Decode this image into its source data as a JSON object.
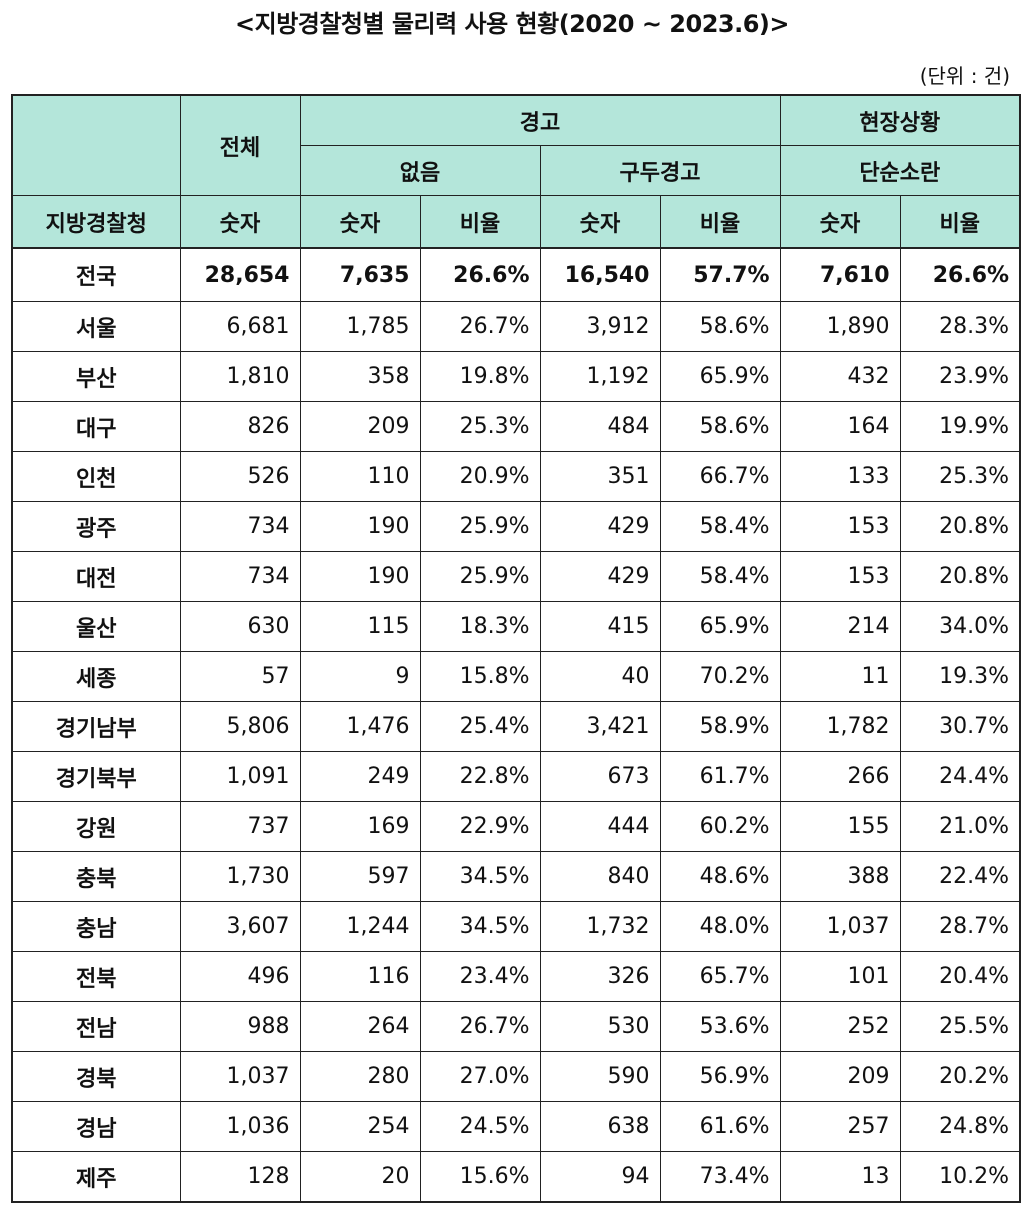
{
  "title": "<지방경찰청별 물리력 사용 현황(2020 ~ 2023.6)>",
  "unit": "(단위 : 건)",
  "header": {
    "total": "전체",
    "warning": "경고",
    "field_situation": "현장상황",
    "none": "없음",
    "verbal_warning": "구두경고",
    "simple_disturbance": "단순소란",
    "region_col": "지방경찰청",
    "count": "숫자",
    "ratio": "비율"
  },
  "rows": [
    {
      "region": "전국",
      "total": "28,654",
      "none_n": "7,635",
      "none_r": "26.6%",
      "verbal_n": "16,540",
      "verbal_r": "57.7%",
      "simple_n": "7,610",
      "simple_r": "26.6%"
    },
    {
      "region": "서울",
      "total": "6,681",
      "none_n": "1,785",
      "none_r": "26.7%",
      "verbal_n": "3,912",
      "verbal_r": "58.6%",
      "simple_n": "1,890",
      "simple_r": "28.3%"
    },
    {
      "region": "부산",
      "total": "1,810",
      "none_n": "358",
      "none_r": "19.8%",
      "verbal_n": "1,192",
      "verbal_r": "65.9%",
      "simple_n": "432",
      "simple_r": "23.9%"
    },
    {
      "region": "대구",
      "total": "826",
      "none_n": "209",
      "none_r": "25.3%",
      "verbal_n": "484",
      "verbal_r": "58.6%",
      "simple_n": "164",
      "simple_r": "19.9%"
    },
    {
      "region": "인천",
      "total": "526",
      "none_n": "110",
      "none_r": "20.9%",
      "verbal_n": "351",
      "verbal_r": "66.7%",
      "simple_n": "133",
      "simple_r": "25.3%"
    },
    {
      "region": "광주",
      "total": "734",
      "none_n": "190",
      "none_r": "25.9%",
      "verbal_n": "429",
      "verbal_r": "58.4%",
      "simple_n": "153",
      "simple_r": "20.8%"
    },
    {
      "region": "대전",
      "total": "734",
      "none_n": "190",
      "none_r": "25.9%",
      "verbal_n": "429",
      "verbal_r": "58.4%",
      "simple_n": "153",
      "simple_r": "20.8%"
    },
    {
      "region": "울산",
      "total": "630",
      "none_n": "115",
      "none_r": "18.3%",
      "verbal_n": "415",
      "verbal_r": "65.9%",
      "simple_n": "214",
      "simple_r": "34.0%"
    },
    {
      "region": "세종",
      "total": "57",
      "none_n": "9",
      "none_r": "15.8%",
      "verbal_n": "40",
      "verbal_r": "70.2%",
      "simple_n": "11",
      "simple_r": "19.3%"
    },
    {
      "region": "경기남부",
      "total": "5,806",
      "none_n": "1,476",
      "none_r": "25.4%",
      "verbal_n": "3,421",
      "verbal_r": "58.9%",
      "simple_n": "1,782",
      "simple_r": "30.7%"
    },
    {
      "region": "경기북부",
      "total": "1,091",
      "none_n": "249",
      "none_r": "22.8%",
      "verbal_n": "673",
      "verbal_r": "61.7%",
      "simple_n": "266",
      "simple_r": "24.4%"
    },
    {
      "region": "강원",
      "total": "737",
      "none_n": "169",
      "none_r": "22.9%",
      "verbal_n": "444",
      "verbal_r": "60.2%",
      "simple_n": "155",
      "simple_r": "21.0%"
    },
    {
      "region": "충북",
      "total": "1,730",
      "none_n": "597",
      "none_r": "34.5%",
      "verbal_n": "840",
      "verbal_r": "48.6%",
      "simple_n": "388",
      "simple_r": "22.4%"
    },
    {
      "region": "충남",
      "total": "3,607",
      "none_n": "1,244",
      "none_r": "34.5%",
      "verbal_n": "1,732",
      "verbal_r": "48.0%",
      "simple_n": "1,037",
      "simple_r": "28.7%"
    },
    {
      "region": "전북",
      "total": "496",
      "none_n": "116",
      "none_r": "23.4%",
      "verbal_n": "326",
      "verbal_r": "65.7%",
      "simple_n": "101",
      "simple_r": "20.4%"
    },
    {
      "region": "전남",
      "total": "988",
      "none_n": "264",
      "none_r": "26.7%",
      "verbal_n": "530",
      "verbal_r": "53.6%",
      "simple_n": "252",
      "simple_r": "25.5%"
    },
    {
      "region": "경북",
      "total": "1,037",
      "none_n": "280",
      "none_r": "27.0%",
      "verbal_n": "590",
      "verbal_r": "56.9%",
      "simple_n": "209",
      "simple_r": "20.2%"
    },
    {
      "region": "경남",
      "total": "1,036",
      "none_n": "254",
      "none_r": "24.5%",
      "verbal_n": "638",
      "verbal_r": "61.6%",
      "simple_n": "257",
      "simple_r": "24.8%"
    },
    {
      "region": "제주",
      "total": "128",
      "none_n": "20",
      "none_r": "15.6%",
      "verbal_n": "94",
      "verbal_r": "73.4%",
      "simple_n": "13",
      "simple_r": "10.2%"
    }
  ],
  "colors": {
    "header_bg": "#b4e6da",
    "border": "#222222"
  }
}
